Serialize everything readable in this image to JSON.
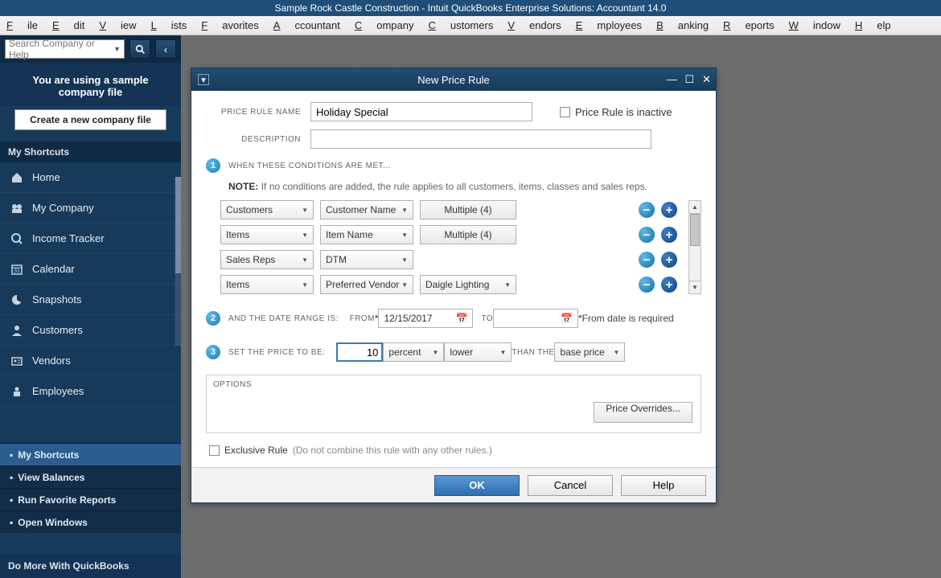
{
  "title_bar": "Sample Rock Castle Construction  - Intuit QuickBooks Enterprise Solutions: Accountant 14.0",
  "menus": [
    "File",
    "Edit",
    "View",
    "Lists",
    "Favorites",
    "Accountant",
    "Company",
    "Customers",
    "Vendors",
    "Employees",
    "Banking",
    "Reports",
    "Window",
    "Help"
  ],
  "sidebar": {
    "search_placeholder": "Search Company or Help",
    "sample_msg_l1": "You are using a sample",
    "sample_msg_l2": "company file",
    "create_btn": "Create a new company file",
    "shortcuts_hdr": "My Shortcuts",
    "items": [
      {
        "label": "Home",
        "icon": "home"
      },
      {
        "label": "My Company",
        "icon": "company"
      },
      {
        "label": "Income Tracker",
        "icon": "income"
      },
      {
        "label": "Calendar",
        "icon": "calendar"
      },
      {
        "label": "Snapshots",
        "icon": "pie"
      },
      {
        "label": "Customers",
        "icon": "person"
      },
      {
        "label": "Vendors",
        "icon": "vendors"
      },
      {
        "label": "Employees",
        "icon": "employees"
      }
    ],
    "bottom": [
      "My Shortcuts",
      "View Balances",
      "Run Favorite Reports",
      "Open Windows"
    ],
    "do_more": "Do More With QuickBooks"
  },
  "dialog": {
    "title": "New Price Rule",
    "labels": {
      "name": "PRICE RULE NAME",
      "desc": "DESCRIPTION",
      "inactive": "Price Rule is inactive",
      "step1": "WHEN THESE CONDITIONS ARE MET...",
      "note_b": "NOTE:",
      "note": "If no conditions are added, the rule applies to all customers, items, classes and sales reps.",
      "step2": "AND THE DATE RANGE IS:",
      "from": "FROM",
      "to": "TO",
      "from_req": "From date is required",
      "step3": "SET THE PRICE TO BE:",
      "than": "THAN THE",
      "options": "OPTIONS",
      "overrides": "Price Overrides...",
      "excl": "Exclusive Rule",
      "excl_g": "(Do not combine this rule with any other rules.)"
    },
    "values": {
      "name": "Holiday Special",
      "desc": "",
      "from_date": "12/15/2017",
      "to_date": "",
      "price_amount": "10",
      "price_unit": "percent",
      "price_dir": "lower",
      "price_base": "base price"
    },
    "conditions": [
      {
        "a": "Customers",
        "b": "Customer Name",
        "c": "Multiple (4)",
        "ctype": "btn"
      },
      {
        "a": "Items",
        "b": "Item Name",
        "c": "Multiple (4)",
        "ctype": "btn"
      },
      {
        "a": "Sales Reps",
        "b": "DTM",
        "c": "",
        "ctype": "none"
      },
      {
        "a": "Items",
        "b": "Preferred Vendor",
        "c": "Daigle Lighting",
        "ctype": "dd"
      }
    ],
    "buttons": {
      "ok": "OK",
      "cancel": "Cancel",
      "help": "Help"
    }
  }
}
